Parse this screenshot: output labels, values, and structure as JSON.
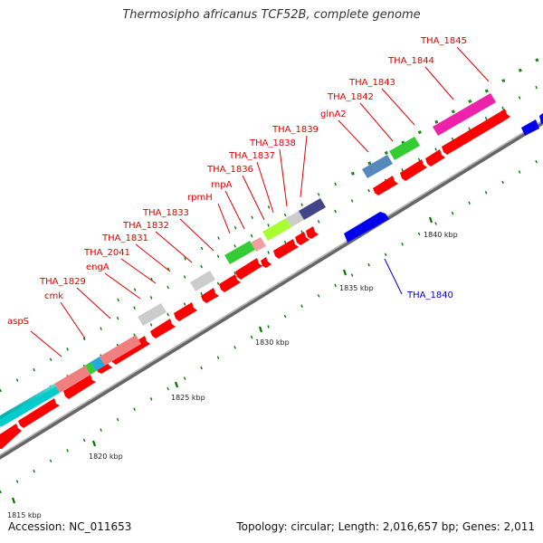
{
  "title": "Thermosipho africanus TCF52B, complete genome",
  "footer": {
    "accession": "Accession: NC_011653",
    "info": "Topology: circular; Length: 2,016,657 bp; Genes: 2,011"
  },
  "colors": {
    "backbone": "#888888",
    "cds": "#ff0000",
    "reverse_cds": "#0000ee",
    "label_forward": "#dd0000",
    "label_reverse": "#0000cc",
    "tick": "#007700"
  },
  "scale_labels": [
    "1815 kbp",
    "1820 kbp",
    "1825 kbp",
    "1830 kbp",
    "1835 kbp",
    "1840 kbp"
  ],
  "gene_labels": [
    {
      "text": "aspS"
    },
    {
      "text": "cmk"
    },
    {
      "text": "THA_1829"
    },
    {
      "text": "engA"
    },
    {
      "text": "THA_2041"
    },
    {
      "text": "THA_1831"
    },
    {
      "text": "THA_1832"
    },
    {
      "text": "THA_1833"
    },
    {
      "text": "rpmH"
    },
    {
      "text": "rnpA"
    },
    {
      "text": "THA_1836"
    },
    {
      "text": "THA_1837"
    },
    {
      "text": "THA_1838"
    },
    {
      "text": "THA_1839"
    },
    {
      "text": "glnA2"
    },
    {
      "text": "THA_1842"
    },
    {
      "text": "THA_1843"
    },
    {
      "text": "THA_1844"
    },
    {
      "text": "THA_1845"
    },
    {
      "text": "THA_1840"
    }
  ]
}
